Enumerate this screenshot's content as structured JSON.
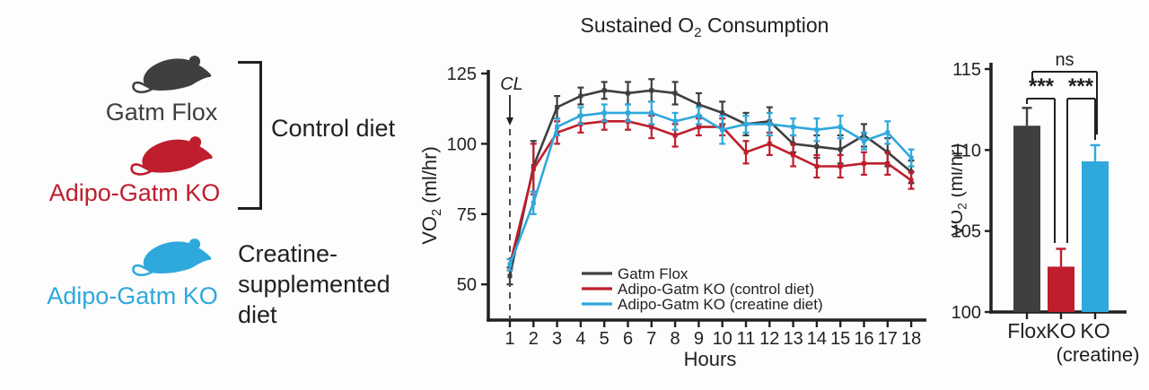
{
  "colors": {
    "dark": "#3f3f41",
    "red": "#be1e2d",
    "blue": "#2fa8dc",
    "axis": "#231f20",
    "background": "#fdfdfd"
  },
  "legend_panel": {
    "groups": [
      {
        "label": "Gatm Flox",
        "color": "#3f3f41"
      },
      {
        "label": "Adipo-Gatm KO",
        "color": "#be1e2d"
      },
      {
        "label": "Adipo-Gatm KO",
        "color": "#2fa8dc"
      }
    ],
    "control_diet_label": "Control diet",
    "creatine_diet_lines": [
      "Creatine-",
      "supplemented",
      "diet"
    ]
  },
  "chart_data": [
    {
      "type": "line",
      "title": "Sustained O2 Consumption",
      "xlabel": "Hours",
      "ylabel": "VO2 (ml/hr)",
      "annotation": "CL",
      "x": [
        1,
        2,
        3,
        4,
        5,
        6,
        7,
        8,
        9,
        10,
        11,
        12,
        13,
        14,
        15,
        16,
        17,
        18
      ],
      "yticks": [
        50,
        75,
        100,
        125
      ],
      "ylim": [
        45,
        126
      ],
      "legend_position": "inside-bottom",
      "series": [
        {
          "name": "Gatm Flox",
          "color": "#3f3f41",
          "values": [
            53,
            92,
            113,
            117,
            119,
            118,
            119,
            118,
            114,
            111,
            107,
            108,
            100,
            99,
            98,
            103,
            97,
            90
          ],
          "errors": [
            3,
            9,
            4,
            3,
            3,
            4,
            4,
            4,
            4,
            4,
            4,
            5,
            3,
            4,
            5,
            4,
            5,
            4
          ]
        },
        {
          "name": "Adipo-Gatm KO (control diet)",
          "color": "#be1e2d",
          "values": [
            57,
            91,
            104,
            107,
            108,
            108,
            106,
            103,
            106,
            106,
            97,
            100,
            96,
            92,
            92,
            93,
            93,
            87
          ],
          "errors": [
            2,
            9,
            4,
            3,
            3,
            3,
            4,
            4,
            3,
            3,
            4,
            4,
            4,
            4,
            4,
            4,
            4,
            3
          ]
        },
        {
          "name": "Adipo-Gatm KO (creatine diet)",
          "color": "#2fa8dc",
          "values": [
            57,
            79,
            106,
            110,
            111,
            111,
            111,
            108,
            110,
            105,
            107,
            107,
            106,
            105,
            106,
            101,
            104,
            95
          ],
          "errors": [
            2,
            4,
            3,
            3,
            3,
            3,
            4,
            3,
            3,
            5,
            3,
            4,
            3,
            4,
            4,
            3,
            4,
            3
          ]
        }
      ]
    },
    {
      "type": "bar",
      "ylabel": "VO2 (ml/hr)",
      "categories": [
        {
          "label": "Flox",
          "sublabel": "",
          "color": "#3f3f41"
        },
        {
          "label": "KO",
          "sublabel": "",
          "color": "#be1e2d"
        },
        {
          "label": "KO",
          "sublabel": "(creatine)",
          "color": "#2fa8dc"
        }
      ],
      "values": [
        111.5,
        102.8,
        109.3
      ],
      "errors": [
        1.1,
        1.1,
        1.0
      ],
      "yticks": [
        100,
        105,
        110,
        115
      ],
      "ylim": [
        100,
        115
      ],
      "significance": [
        {
          "pair": [
            0,
            1
          ],
          "label": "***"
        },
        {
          "pair": [
            1,
            2
          ],
          "label": "***"
        },
        {
          "pair": [
            0,
            2
          ],
          "label": "ns"
        }
      ]
    }
  ]
}
